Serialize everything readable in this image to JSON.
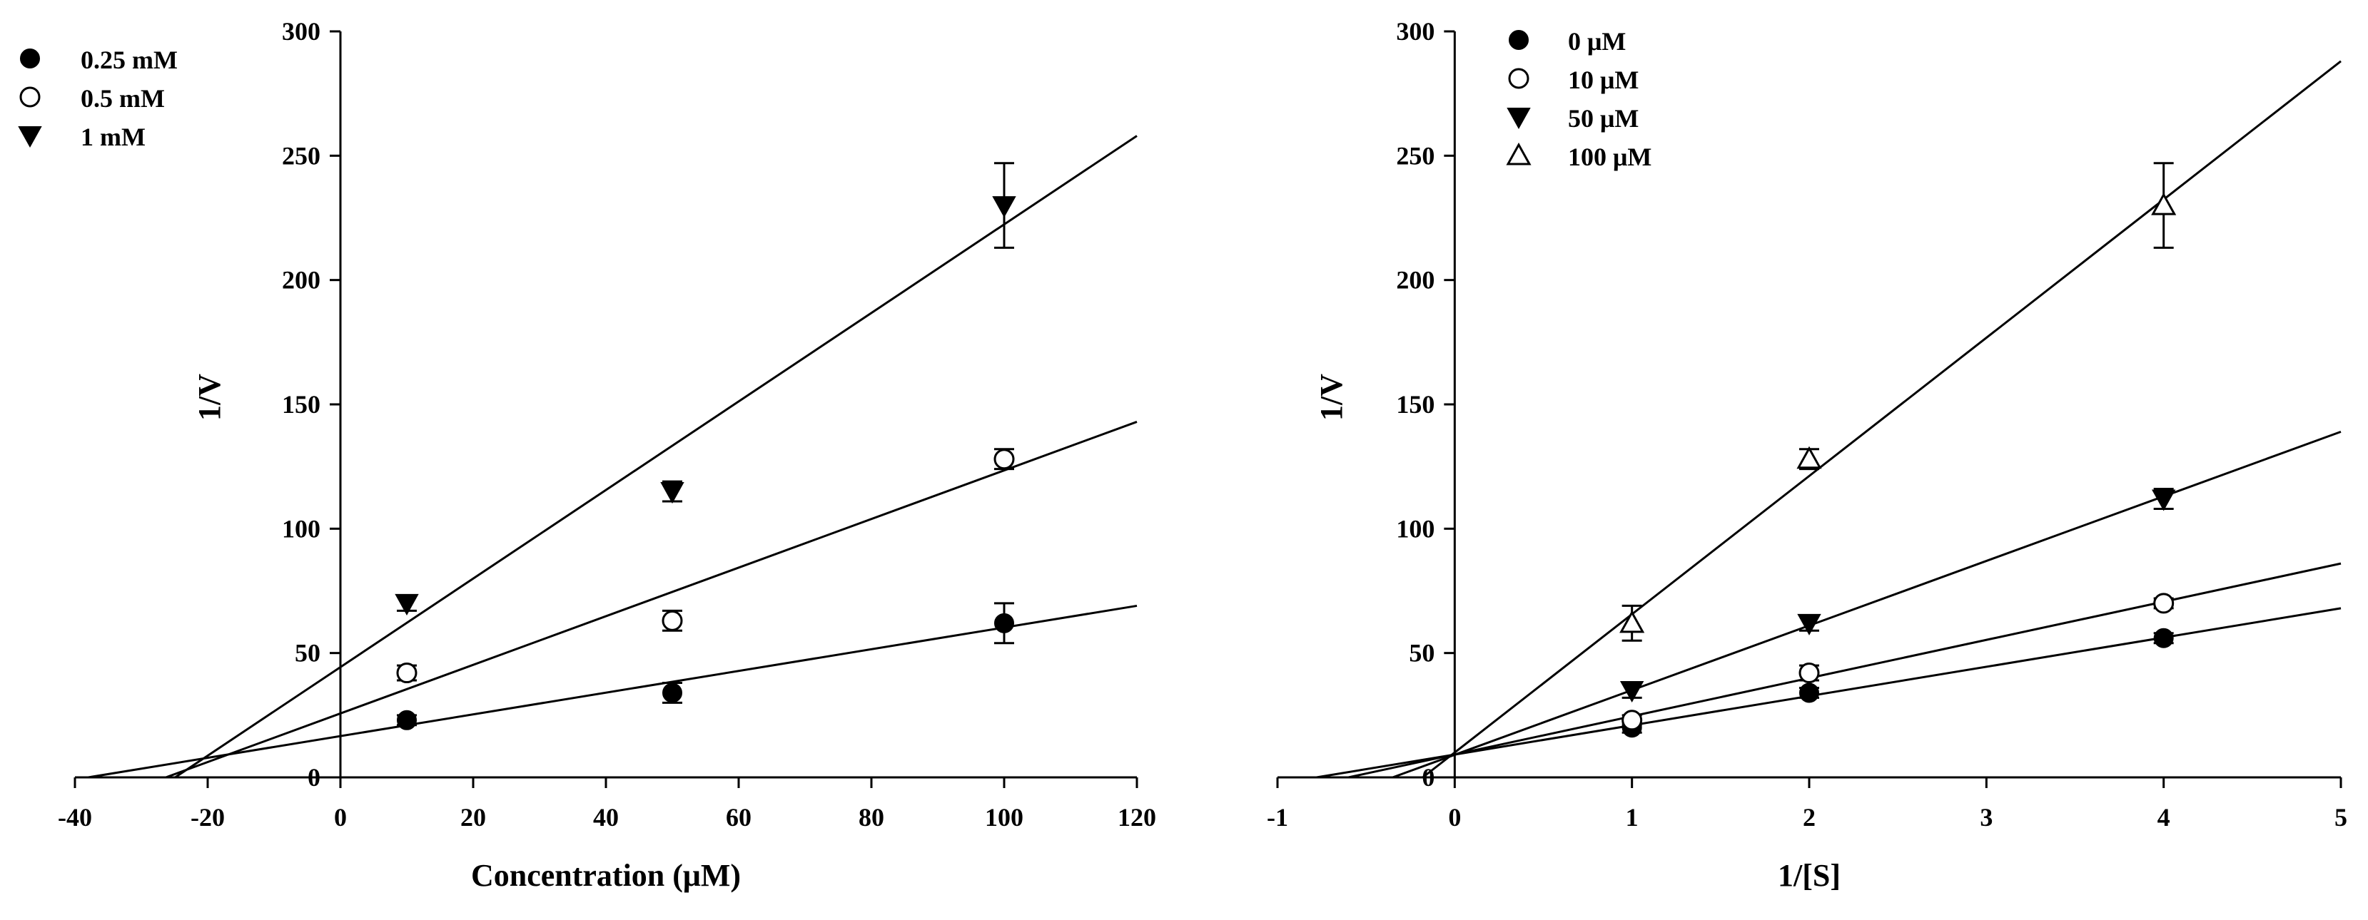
{
  "chart_data": [
    {
      "type": "scatter",
      "title": "",
      "xlabel": "Concentration (μM)",
      "ylabel": "1/V",
      "xlim": [
        -40,
        120
      ],
      "ylim": [
        0,
        300
      ],
      "xticks": [
        -40,
        -20,
        0,
        20,
        40,
        60,
        80,
        100,
        120
      ],
      "yticks": [
        0,
        50,
        100,
        150,
        200,
        250,
        300
      ],
      "legend_position": "top-left",
      "series": [
        {
          "name": "0.25 mM",
          "marker": "filled-circle",
          "x": [
            10,
            50,
            100
          ],
          "y": [
            23,
            34,
            62
          ],
          "err": [
            2,
            4,
            8
          ],
          "fit": {
            "x": [
              -38,
              120
            ],
            "y": [
              0,
              69
            ]
          }
        },
        {
          "name": "0.5 mM",
          "marker": "open-circle",
          "x": [
            10,
            50,
            100
          ],
          "y": [
            42,
            63,
            128
          ],
          "err": [
            3,
            4,
            4
          ],
          "fit": {
            "x": [
              -26.3,
              120
            ],
            "y": [
              0,
              143
            ]
          }
        },
        {
          "name": "1 mM",
          "marker": "filled-triangle-down",
          "x": [
            10,
            50,
            100
          ],
          "y": [
            70,
            115,
            230
          ],
          "err": [
            3,
            4,
            17
          ],
          "fit": {
            "x": [
              -24.9,
              120
            ],
            "y": [
              0,
              258
            ]
          }
        }
      ]
    },
    {
      "type": "scatter",
      "title": "",
      "xlabel": "1/[S]",
      "ylabel": "1/V",
      "xlim": [
        -1,
        5
      ],
      "ylim": [
        0,
        300
      ],
      "xticks": [
        -1,
        0,
        1,
        2,
        3,
        4,
        5
      ],
      "yticks": [
        0,
        50,
        100,
        150,
        200,
        250,
        300
      ],
      "legend_position": "top-left",
      "series": [
        {
          "name": "0 μM",
          "marker": "filled-circle",
          "x": [
            1,
            2,
            4
          ],
          "y": [
            20,
            34,
            56
          ],
          "err": [
            2,
            2,
            2
          ],
          "fit": {
            "x": [
              -0.78,
              5
            ],
            "y": [
              0,
              68
            ]
          }
        },
        {
          "name": "10 μM",
          "marker": "open-circle",
          "x": [
            1,
            2,
            4
          ],
          "y": [
            23,
            42,
            70
          ],
          "err": [
            2,
            3,
            2
          ],
          "fit": {
            "x": [
              -0.6,
              5
            ],
            "y": [
              0,
              86
            ]
          }
        },
        {
          "name": "50 μM",
          "marker": "filled-triangle-down",
          "x": [
            1,
            2,
            4
          ],
          "y": [
            35,
            62,
            112
          ],
          "err": [
            3,
            3,
            4
          ],
          "fit": {
            "x": [
              -0.35,
              5
            ],
            "y": [
              0,
              139
            ]
          }
        },
        {
          "name": "100 μM",
          "marker": "open-triangle-up",
          "x": [
            1,
            2,
            4
          ],
          "y": [
            62,
            128,
            230
          ],
          "err": [
            7,
            4,
            17
          ],
          "fit": {
            "x": [
              -0.18,
              5
            ],
            "y": [
              0,
              288
            ]
          }
        }
      ]
    }
  ]
}
